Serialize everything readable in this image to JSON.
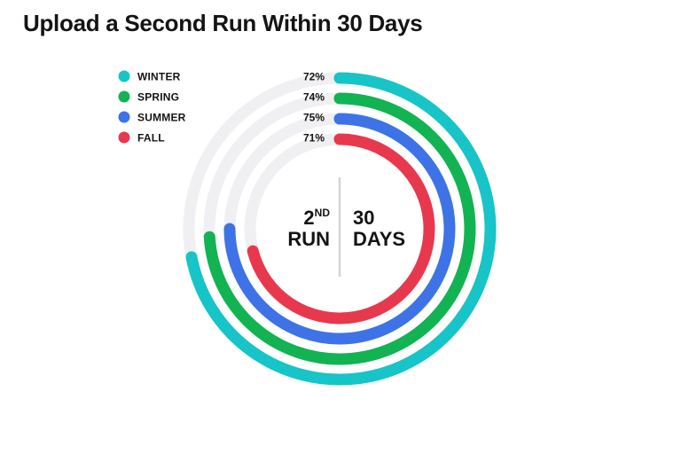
{
  "title": "Upload a Second Run Within 30 Days",
  "center": {
    "left_number": "2",
    "left_superscript": "ND",
    "left_word": "RUN",
    "right_number": "30",
    "right_word": "DAYS"
  },
  "chart_data": {
    "type": "radial-bar",
    "title": "Upload a Second Run Within 30 Days",
    "unit": "%",
    "max": 100,
    "legend_position": "top-left",
    "series": [
      {
        "name": "WINTER",
        "value": 72,
        "label": "72%",
        "color": "#17c4c7"
      },
      {
        "name": "SPRING",
        "value": 74,
        "label": "74%",
        "color": "#11b352"
      },
      {
        "name": "SUMMER",
        "value": 75,
        "label": "75%",
        "color": "#3d73e6"
      },
      {
        "name": "FALL",
        "value": 71,
        "label": "71%",
        "color": "#e8384d"
      }
    ],
    "track_color": "#f0f0f3",
    "divider_color": "#d4d4d8"
  }
}
